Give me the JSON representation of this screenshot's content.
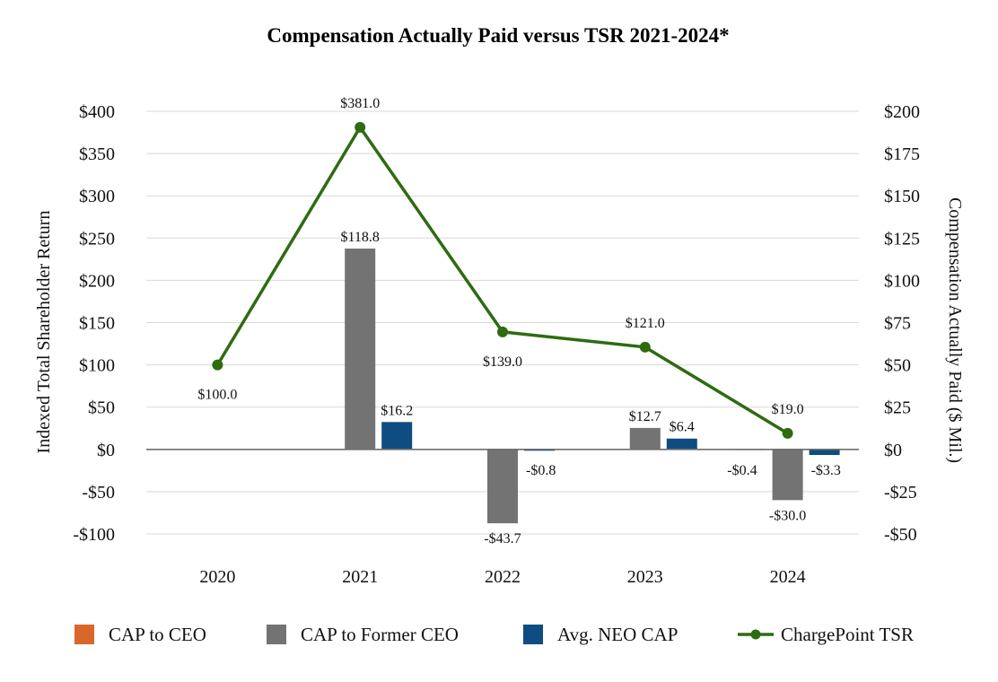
{
  "chart_data": {
    "type": "bar+line",
    "title": "Compensation Actually Paid versus TSR 2021-2024*",
    "categories": [
      "2020",
      "2021",
      "2022",
      "2023",
      "2024"
    ],
    "y_left": {
      "label": "Indexed Total Shareholder Return",
      "range": [
        -100,
        400
      ],
      "ticks": [
        400,
        350,
        300,
        250,
        200,
        150,
        100,
        50,
        0,
        -50,
        -100
      ],
      "tick_labels": [
        "$400",
        "$350",
        "$300",
        "$250",
        "$200",
        "$150",
        "$100",
        "$50",
        "$0",
        "-$50",
        "-$100"
      ]
    },
    "y_right": {
      "label": "Compensation Actually Paid ($ Mil.)",
      "range": [
        -50,
        200
      ],
      "ticks": [
        200,
        175,
        150,
        125,
        100,
        75,
        50,
        25,
        0,
        -25,
        -50
      ],
      "tick_labels": [
        "$200",
        "$175",
        "$150",
        "$125",
        "$100",
        "$75",
        "$50",
        "$25",
        "$0",
        "-$25",
        "-$50"
      ]
    },
    "series": [
      {
        "name": "CAP to CEO",
        "type": "bar",
        "axis": "right",
        "color": "#d9672a",
        "values": [
          null,
          null,
          null,
          null,
          -0.4
        ],
        "labels": [
          "",
          "",
          "",
          "",
          "-$0.4"
        ]
      },
      {
        "name": "CAP to Former CEO",
        "type": "bar",
        "axis": "right",
        "color": "#737373",
        "values": [
          null,
          118.8,
          -43.7,
          12.7,
          -30.0
        ],
        "labels": [
          "",
          "$118.8",
          "-$43.7",
          "$12.7",
          "-$30.0"
        ]
      },
      {
        "name": "Avg. NEO CAP",
        "type": "bar",
        "axis": "right",
        "color": "#0f4c81",
        "values": [
          null,
          16.2,
          -0.8,
          6.4,
          -3.3
        ],
        "labels": [
          "",
          "$16.2",
          "-$0.8",
          "$6.4",
          "-$3.3"
        ]
      },
      {
        "name": "ChargePoint TSR",
        "type": "line",
        "axis": "left",
        "color": "#2e6b11",
        "values": [
          100.0,
          381.0,
          139.0,
          121.0,
          19.0
        ],
        "labels": [
          "$100.0",
          "$381.0",
          "$139.0",
          "$121.0",
          "$19.0"
        ]
      }
    ],
    "legend": {
      "position": "bottom",
      "items": [
        "CAP to CEO",
        "CAP to Former CEO",
        "Avg. NEO CAP",
        "ChargePoint TSR"
      ]
    }
  }
}
